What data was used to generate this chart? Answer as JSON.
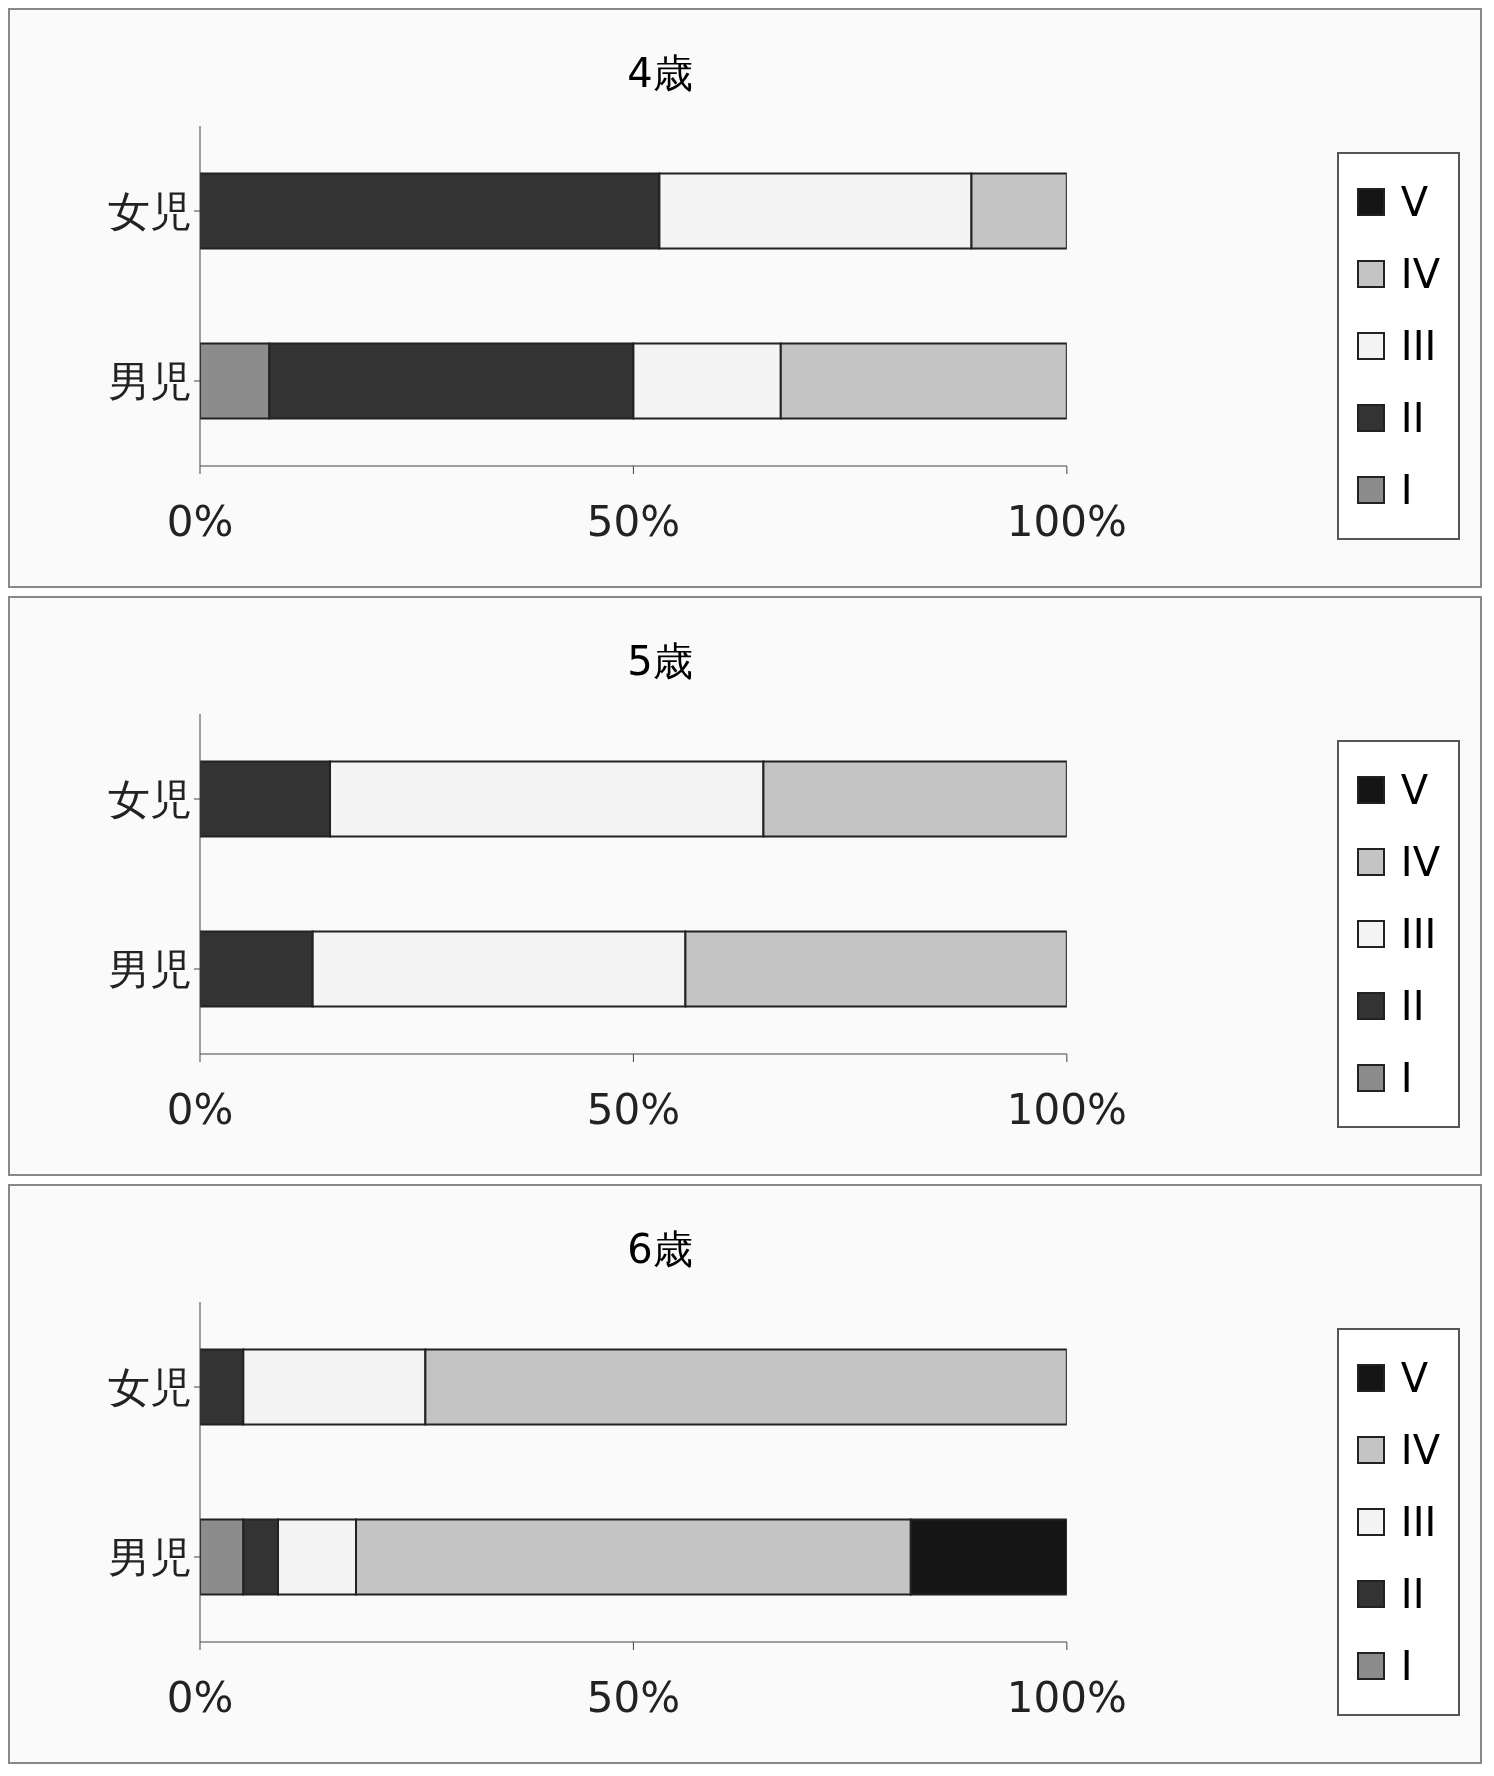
{
  "chart_data": [
    {
      "type": "bar",
      "title": "4歳",
      "categories": [
        "女児",
        "男児"
      ],
      "orientation": "horizontal",
      "stacked": true,
      "xlim": [
        0,
        100
      ],
      "xticks": [
        {
          "value": 0,
          "label": "0%"
        },
        {
          "value": 50,
          "label": "50%"
        },
        {
          "value": 100,
          "label": "100%"
        }
      ],
      "legend": "right",
      "series": [
        {
          "name": "I",
          "color": "#8c8c8c",
          "values": [
            0,
            8
          ]
        },
        {
          "name": "II",
          "color": "#333333",
          "values": [
            53,
            42
          ]
        },
        {
          "name": "III",
          "color": "#f4f4f4",
          "values": [
            36,
            17
          ]
        },
        {
          "name": "IV",
          "color": "#c4c4c4",
          "values": [
            11,
            33
          ]
        },
        {
          "name": "V",
          "color": "#151515",
          "values": [
            0,
            0
          ]
        }
      ]
    },
    {
      "type": "bar",
      "title": "5歳",
      "categories": [
        "女児",
        "男児"
      ],
      "orientation": "horizontal",
      "stacked": true,
      "xlim": [
        0,
        100
      ],
      "xticks": [
        {
          "value": 0,
          "label": "0%"
        },
        {
          "value": 50,
          "label": "50%"
        },
        {
          "value": 100,
          "label": "100%"
        }
      ],
      "legend": "right",
      "series": [
        {
          "name": "I",
          "color": "#8c8c8c",
          "values": [
            0,
            0
          ]
        },
        {
          "name": "II",
          "color": "#333333",
          "values": [
            15,
            13
          ]
        },
        {
          "name": "III",
          "color": "#f4f4f4",
          "values": [
            50,
            43
          ]
        },
        {
          "name": "IV",
          "color": "#c4c4c4",
          "values": [
            35,
            44
          ]
        },
        {
          "name": "V",
          "color": "#151515",
          "values": [
            0,
            0
          ]
        }
      ]
    },
    {
      "type": "bar",
      "title": "6歳",
      "categories": [
        "女児",
        "男児"
      ],
      "orientation": "horizontal",
      "stacked": true,
      "xlim": [
        0,
        100
      ],
      "xticks": [
        {
          "value": 0,
          "label": "0%"
        },
        {
          "value": 50,
          "label": "50%"
        },
        {
          "value": 100,
          "label": "100%"
        }
      ],
      "legend": "right",
      "series": [
        {
          "name": "I",
          "color": "#8c8c8c",
          "values": [
            0,
            5
          ]
        },
        {
          "name": "II",
          "color": "#333333",
          "values": [
            5,
            4
          ]
        },
        {
          "name": "III",
          "color": "#f4f4f4",
          "values": [
            21,
            9
          ]
        },
        {
          "name": "IV",
          "color": "#c4c4c4",
          "values": [
            74,
            64
          ]
        },
        {
          "name": "V",
          "color": "#151515",
          "values": [
            0,
            18
          ]
        }
      ]
    }
  ]
}
